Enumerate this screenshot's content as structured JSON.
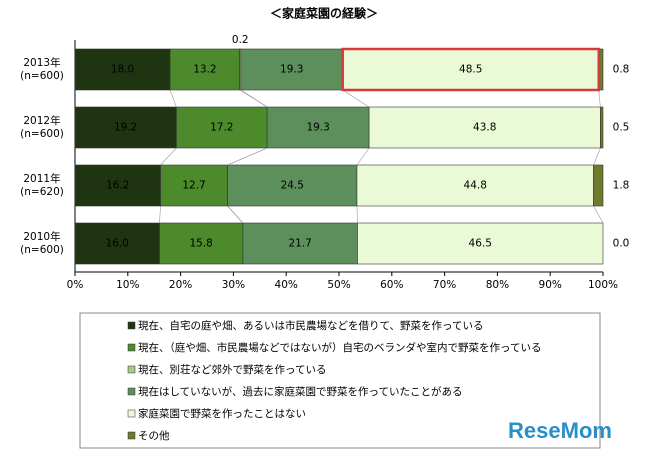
{
  "chart_data": {
    "type": "stacked-bar-horizontal",
    "title": "＜家庭菜園の経験＞",
    "categories": [
      "2013年\n(n=600)",
      "2012年\n(n=600)",
      "2011年\n(n=620)",
      "2010年\n(n=600)"
    ],
    "series": [
      {
        "name": "現在、自宅の庭や畑、あるいは市民農場などを借りて、野菜を作っている",
        "color": "#1f3512",
        "values": [
          18.0,
          19.2,
          16.2,
          16.0
        ],
        "value_labels": [
          "18.0",
          "19.2",
          "16.2",
          "16.0"
        ]
      },
      {
        "name": "現在、（庭や畑、市民農場などではないが）自宅のベランダや室内で野菜を作っている",
        "color": "#4c8a2c",
        "values": [
          13.2,
          17.2,
          12.7,
          15.8
        ],
        "value_labels": [
          "13.2",
          "17.2",
          "12.7",
          "15.8"
        ]
      },
      {
        "name": "現在、別荘など郊外で野菜を作っている",
        "color": "#a6c98a",
        "values": [
          0.2,
          0,
          0,
          0
        ],
        "value_labels": [
          "0.2",
          null,
          null,
          null
        ]
      },
      {
        "name": "現在はしていないが、過去に家庭菜園で野菜を作っていたことがある",
        "color": "#5c8f5c",
        "values": [
          19.3,
          19.3,
          24.5,
          21.7
        ],
        "value_labels": [
          "19.3",
          "19.3",
          "24.5",
          "21.7"
        ]
      },
      {
        "name": "家庭菜園で野菜を作ったことはない",
        "color": "#eafad6",
        "values": [
          48.5,
          43.8,
          44.8,
          46.5
        ],
        "value_labels": [
          "48.5",
          "43.8",
          "44.8",
          "46.5"
        ]
      },
      {
        "name": "その他",
        "color": "#6f7a2e",
        "values": [
          0.8,
          0.5,
          1.8,
          0.0
        ],
        "value_labels": [
          "0.8",
          "0.5",
          "1.8",
          "0.0"
        ]
      }
    ],
    "xlim": [
      0,
      100
    ],
    "xticks": [
      {
        "value": 0,
        "label": "0%"
      },
      {
        "value": 10,
        "label": "10%"
      },
      {
        "value": 20,
        "label": "20%"
      },
      {
        "value": 30,
        "label": "30%"
      },
      {
        "value": 40,
        "label": "40%"
      },
      {
        "value": 50,
        "label": "50%"
      },
      {
        "value": 60,
        "label": "60%"
      },
      {
        "value": 70,
        "label": "70%"
      },
      {
        "value": 80,
        "label": "80%"
      },
      {
        "value": 90,
        "label": "90%"
      },
      {
        "value": 100,
        "label": "100%"
      }
    ],
    "watermark": "ReseMom"
  }
}
